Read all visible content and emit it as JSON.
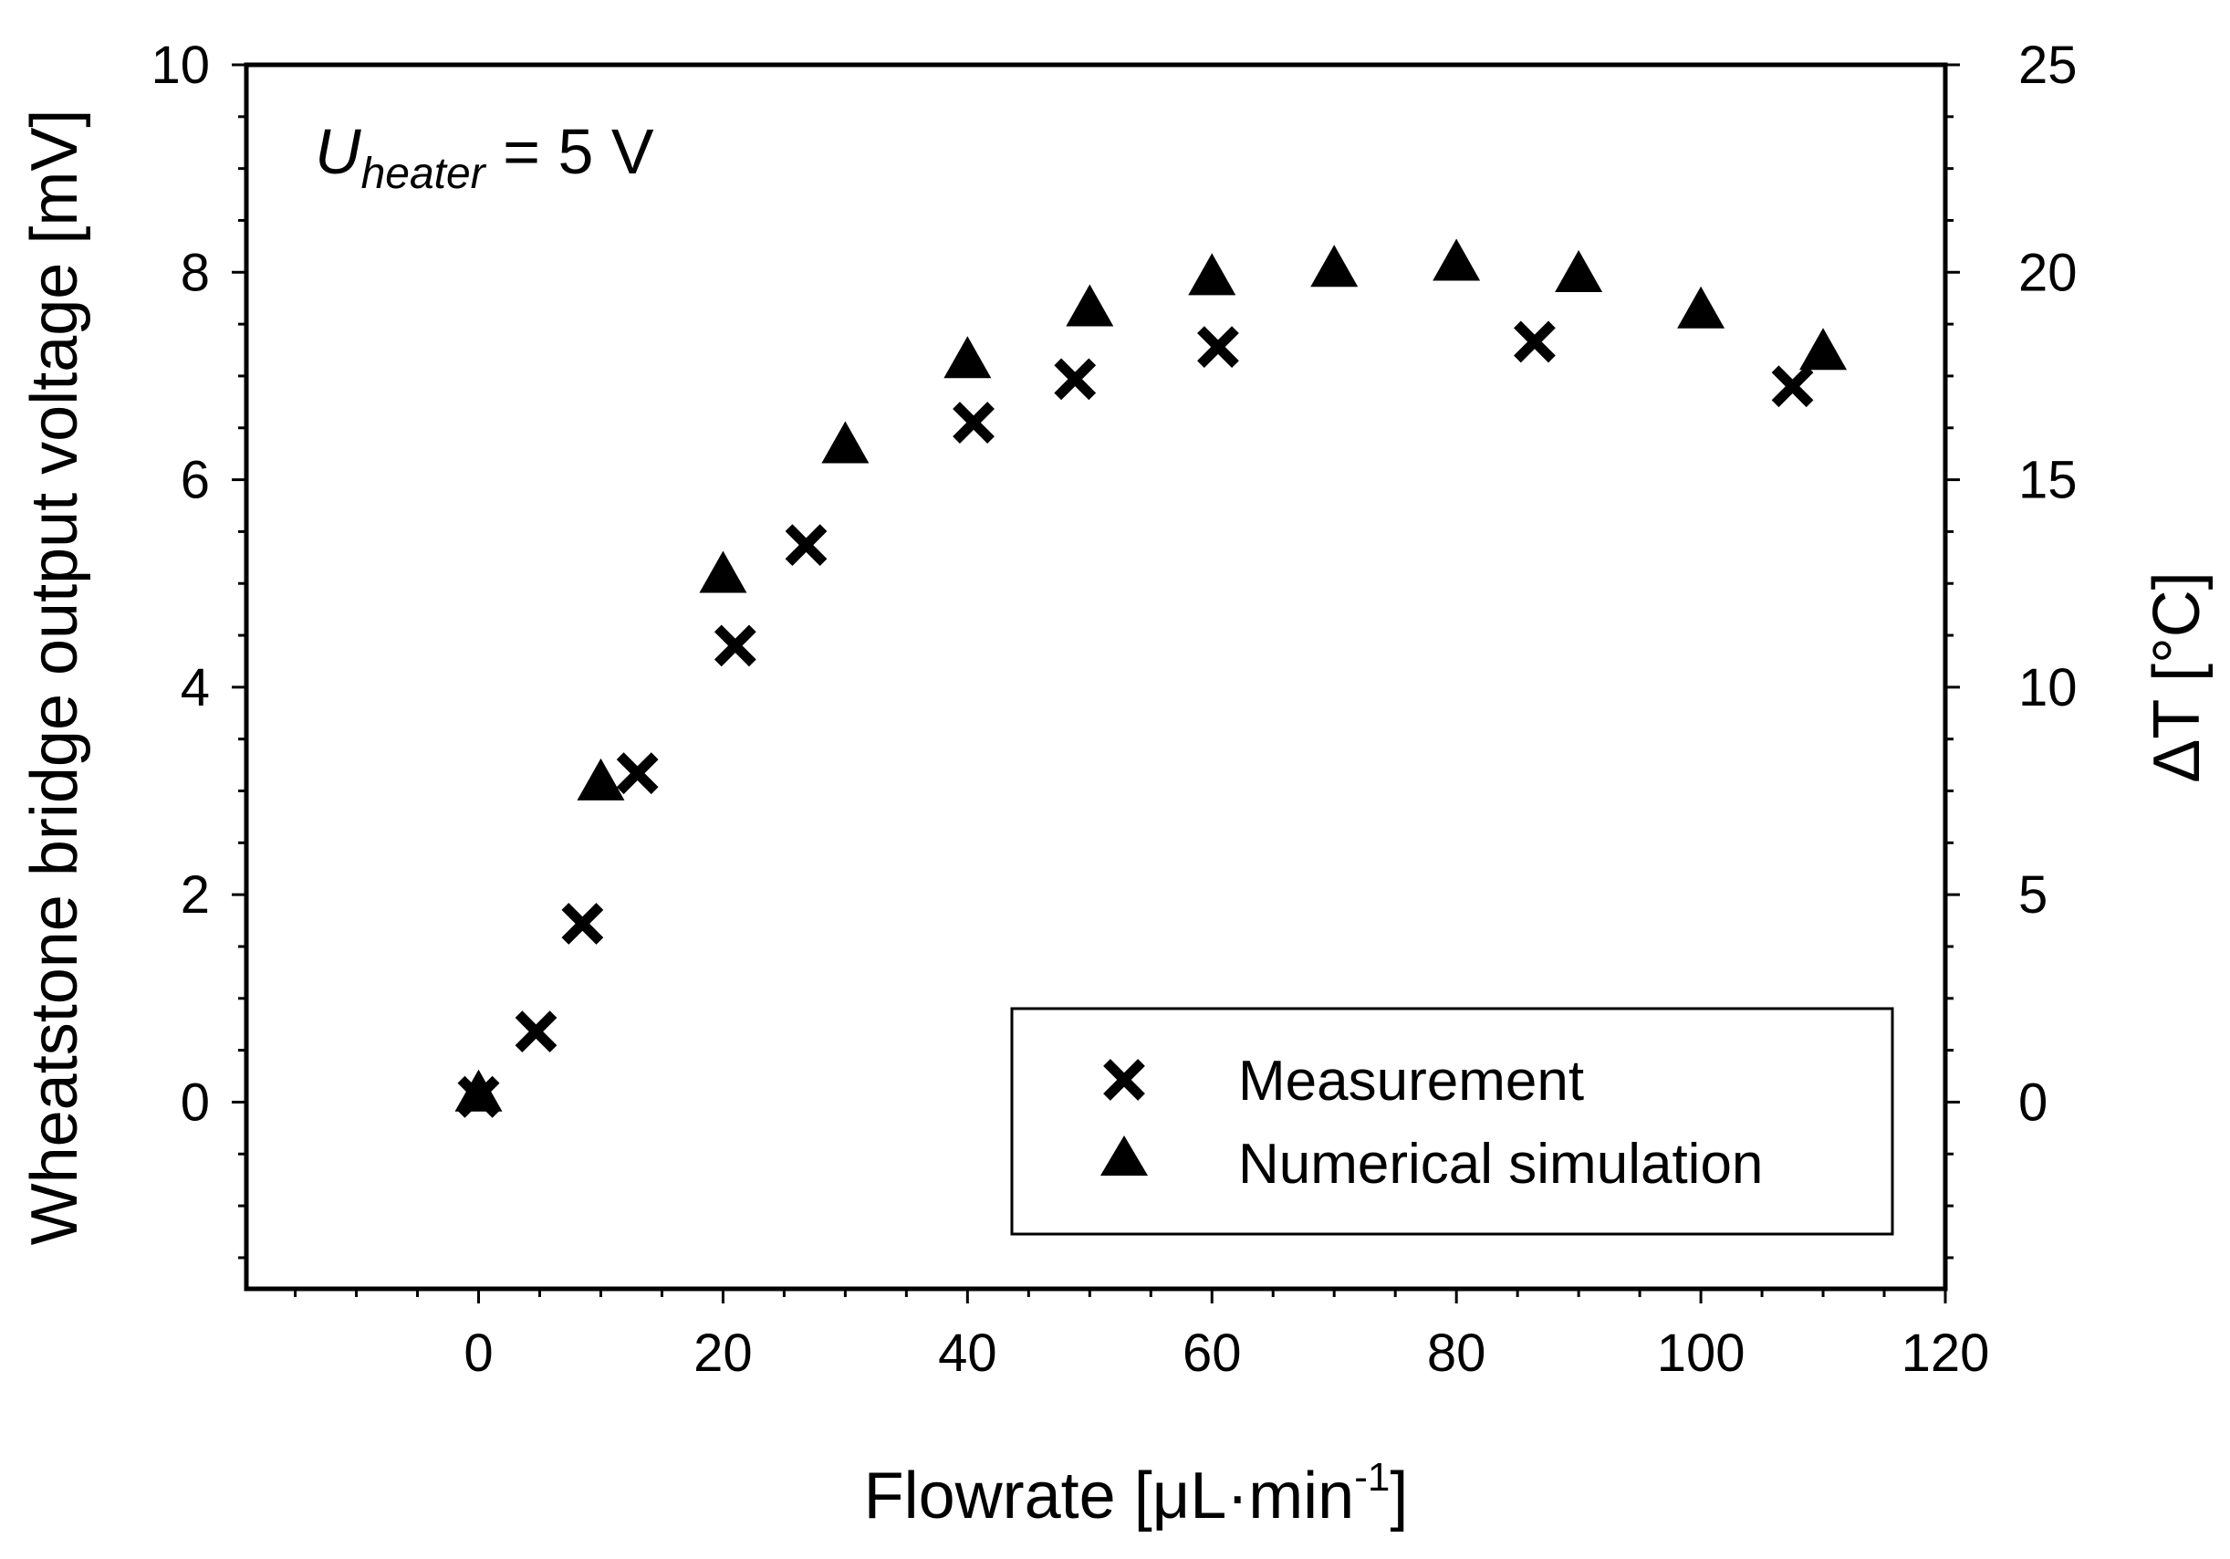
{
  "chart_data": {
    "type": "scatter",
    "title": "",
    "annotation": {
      "symbol": "U",
      "subscript": "heater",
      "suffix": " = 5 V"
    },
    "xlabel": {
      "prefix": "Flowrate [",
      "mu": "μ",
      "mid": "L·min",
      "sup": "-1",
      "suffix": "]"
    },
    "ylabel": "Wheatstone bridge output voltage [mV]",
    "y2label": "ΔT [°C]",
    "xlim": [
      -19,
      120
    ],
    "ylim": [
      -1.8,
      10
    ],
    "y2lim": [
      -4.5,
      25
    ],
    "xticks": [
      0,
      20,
      40,
      60,
      80,
      100,
      120
    ],
    "yticks": [
      0,
      2,
      4,
      6,
      8,
      10
    ],
    "y2ticks": [
      0,
      5,
      10,
      15,
      20,
      25
    ],
    "xtick_labels": [
      "0",
      "20",
      "40",
      "60",
      "80",
      "100",
      "120"
    ],
    "ytick_labels": [
      "0",
      "2",
      "4",
      "6",
      "8",
      "10"
    ],
    "y2tick_labels": [
      "0",
      "5",
      "10",
      "15",
      "20",
      "25"
    ],
    "grid": false,
    "legend_position": "bottom-right",
    "series": [
      {
        "name": "Measurement",
        "marker": "x",
        "axis": "left",
        "x": [
          0,
          0,
          4.7,
          8.5,
          13,
          21,
          26.8,
          40.5,
          48.8,
          60.5,
          86.4,
          107.5
        ],
        "y": [
          0.05,
          0.05,
          0.68,
          1.72,
          3.17,
          4.4,
          5.37,
          6.55,
          6.97,
          7.28,
          7.33,
          6.9
        ]
      },
      {
        "name": "Numerical simulation",
        "marker": "triangle",
        "axis": "left",
        "x": [
          0,
          10,
          20,
          30,
          40,
          50,
          60,
          70,
          80,
          90,
          100,
          110
        ],
        "y": [
          0.05,
          3.05,
          5.05,
          6.3,
          7.12,
          7.62,
          7.92,
          8.0,
          8.06,
          7.95,
          7.6,
          7.2
        ]
      }
    ]
  }
}
